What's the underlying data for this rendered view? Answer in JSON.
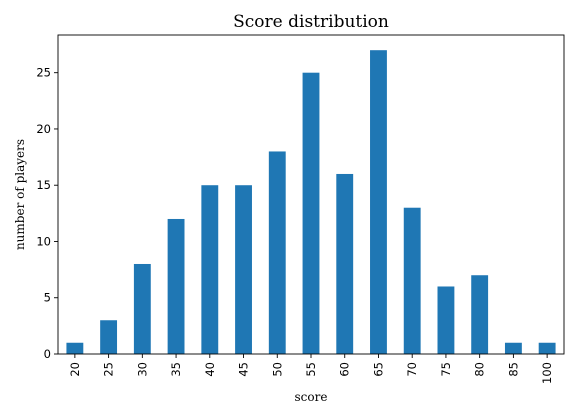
{
  "chart_data": {
    "type": "bar",
    "title": "Score distribution",
    "xlabel": "score",
    "ylabel": "number of players",
    "categories": [
      "20",
      "25",
      "30",
      "35",
      "40",
      "45",
      "50",
      "55",
      "60",
      "65",
      "70",
      "75",
      "80",
      "85",
      "100"
    ],
    "values": [
      1,
      3,
      8,
      12,
      15,
      15,
      18,
      25,
      16,
      27,
      13,
      6,
      7,
      1,
      1
    ],
    "yticks": [
      0,
      5,
      10,
      15,
      20,
      25
    ],
    "ylim": [
      0,
      28.35
    ],
    "grid": false,
    "legend": "none",
    "bar_color": "#1f77b4"
  }
}
